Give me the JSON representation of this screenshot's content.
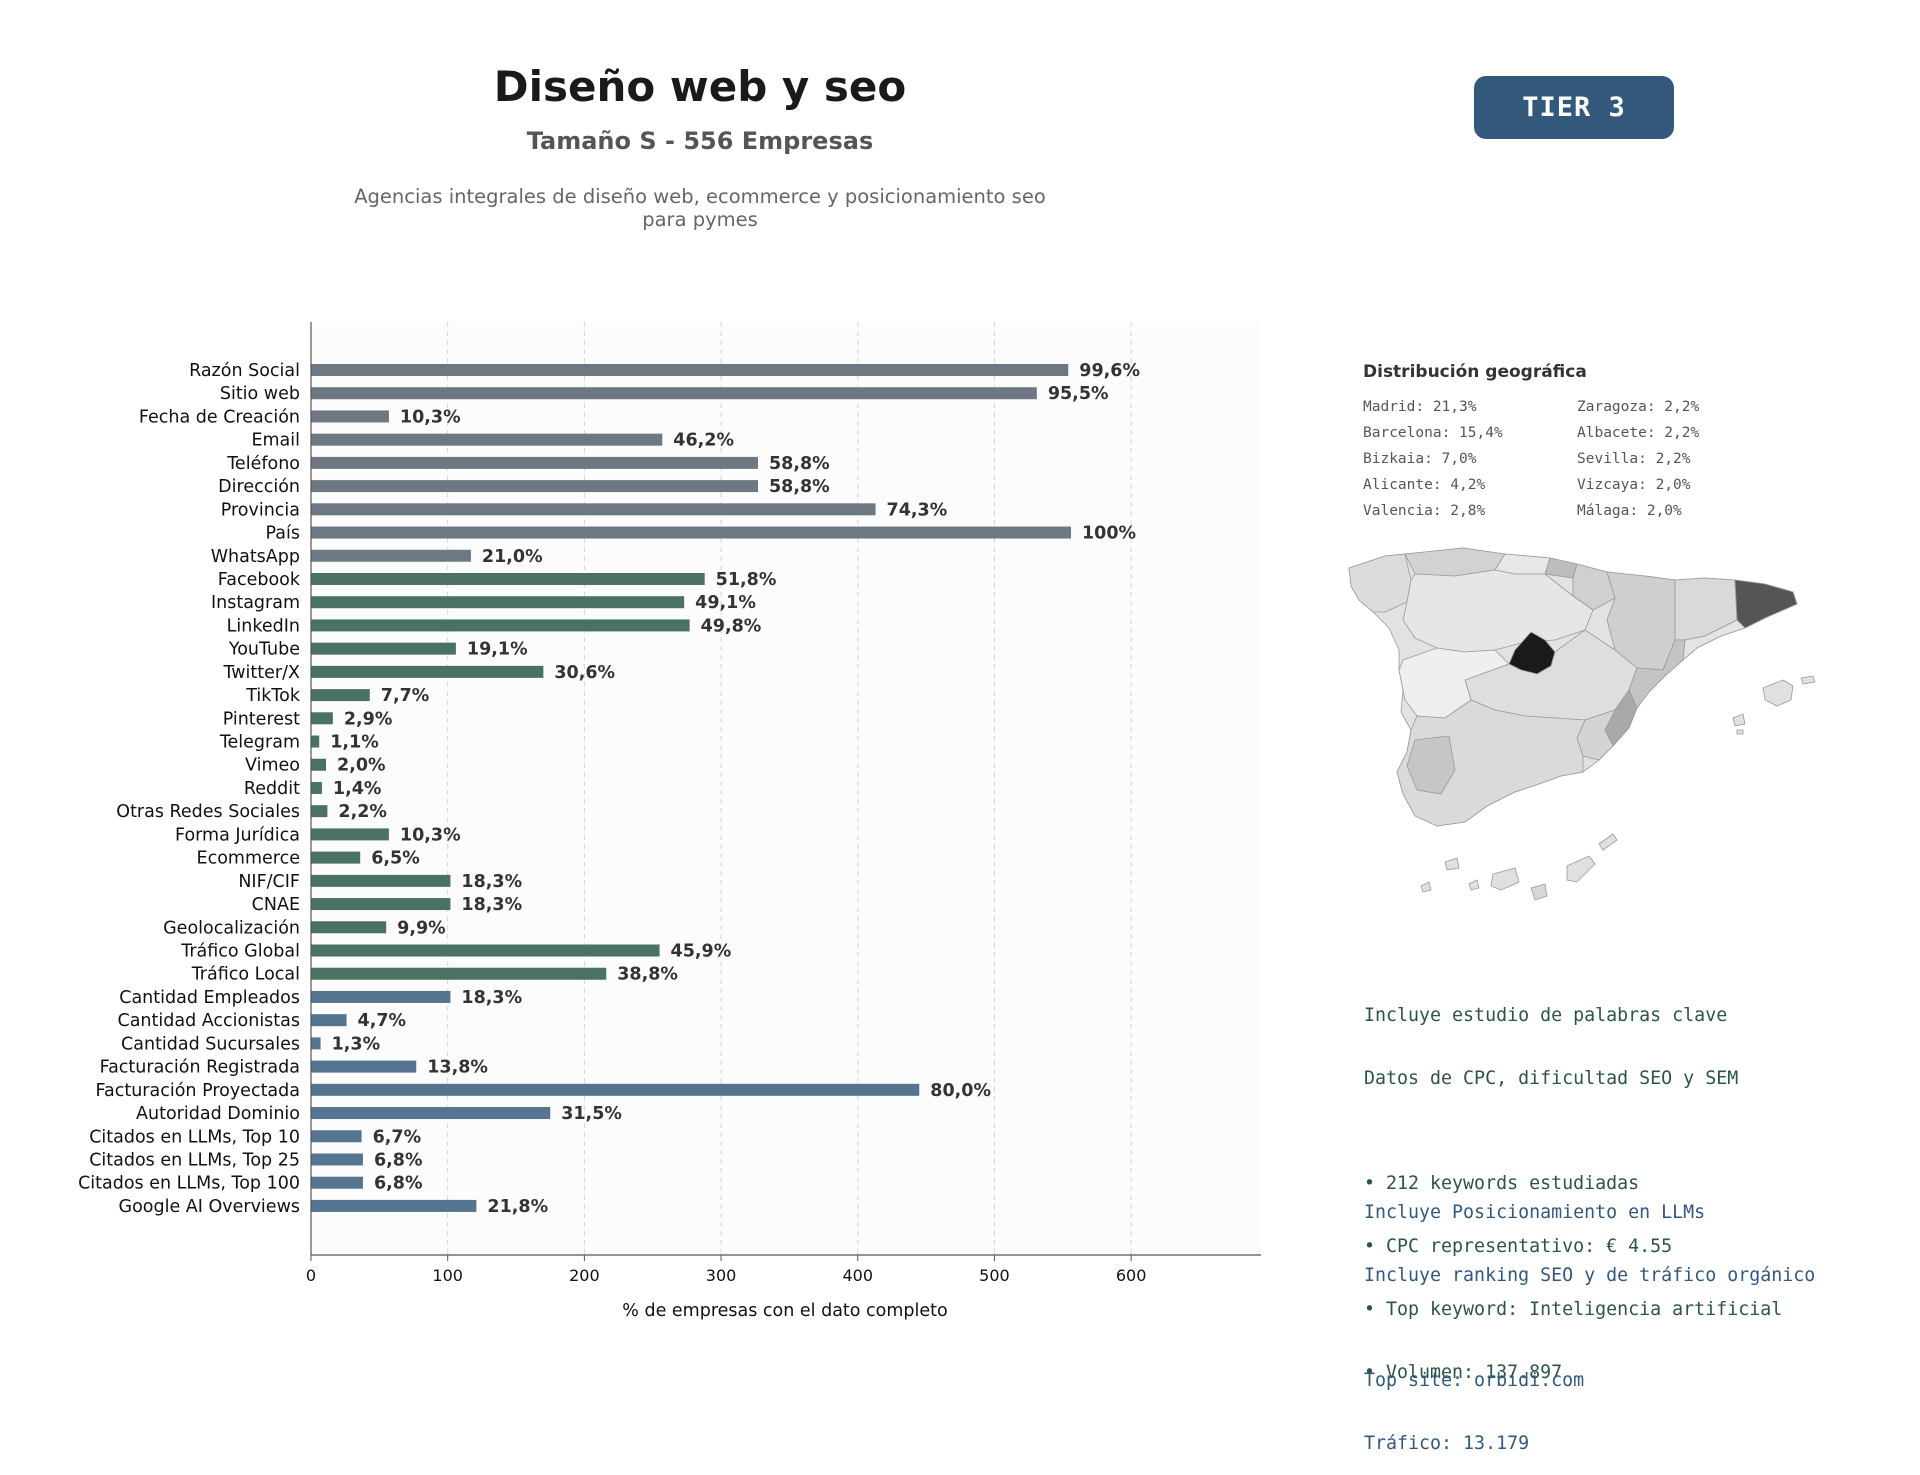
{
  "header": {
    "title": "Diseño web y seo",
    "subtitle": "Tamaño S - 556 Empresas",
    "description": "Agencias integrales de diseño web, ecommerce y posicionamiento seo para pymes",
    "tier": "TIER 3"
  },
  "chart_data": {
    "type": "bar",
    "orientation": "horizontal",
    "xlabel": "% de empresas con el dato completo",
    "xlim": [
      0,
      695
    ],
    "xticks": [
      0,
      100,
      200,
      300,
      400,
      500,
      600
    ],
    "grid": "vertical dashed",
    "colors": {
      "basic": "#6e7883",
      "social": "#4a7262",
      "business": "#55748f"
    },
    "bars": [
      {
        "label": "Razón Social",
        "value": 554,
        "pct": "99,6%",
        "group": "basic"
      },
      {
        "label": "Sitio web",
        "value": 531,
        "pct": "95,5%",
        "group": "basic"
      },
      {
        "label": "Fecha de Creación",
        "value": 57,
        "pct": "10,3%",
        "group": "basic"
      },
      {
        "label": "Email",
        "value": 257,
        "pct": "46,2%",
        "group": "basic"
      },
      {
        "label": "Teléfono",
        "value": 327,
        "pct": "58,8%",
        "group": "basic"
      },
      {
        "label": "Dirección",
        "value": 327,
        "pct": "58,8%",
        "group": "basic"
      },
      {
        "label": "Provincia",
        "value": 413,
        "pct": "74,3%",
        "group": "basic"
      },
      {
        "label": "País",
        "value": 556,
        "pct": "100%",
        "group": "basic"
      },
      {
        "label": "WhatsApp",
        "value": 117,
        "pct": "21,0%",
        "group": "basic"
      },
      {
        "label": "Facebook",
        "value": 288,
        "pct": "51,8%",
        "group": "social"
      },
      {
        "label": "Instagram",
        "value": 273,
        "pct": "49,1%",
        "group": "social"
      },
      {
        "label": "LinkedIn",
        "value": 277,
        "pct": "49,8%",
        "group": "social"
      },
      {
        "label": "YouTube",
        "value": 106,
        "pct": "19,1%",
        "group": "social"
      },
      {
        "label": "Twitter/X",
        "value": 170,
        "pct": "30,6%",
        "group": "social"
      },
      {
        "label": "TikTok",
        "value": 43,
        "pct": "7,7%",
        "group": "social"
      },
      {
        "label": "Pinterest",
        "value": 16,
        "pct": "2,9%",
        "group": "social"
      },
      {
        "label": "Telegram",
        "value": 6,
        "pct": "1,1%",
        "group": "social"
      },
      {
        "label": "Vimeo",
        "value": 11,
        "pct": "2,0%",
        "group": "social"
      },
      {
        "label": "Reddit",
        "value": 8,
        "pct": "1,4%",
        "group": "social"
      },
      {
        "label": "Otras Redes Sociales",
        "value": 12,
        "pct": "2,2%",
        "group": "social"
      },
      {
        "label": "Forma Jurídica",
        "value": 57,
        "pct": "10,3%",
        "group": "social"
      },
      {
        "label": "Ecommerce",
        "value": 36,
        "pct": "6,5%",
        "group": "social"
      },
      {
        "label": "NIF/CIF",
        "value": 102,
        "pct": "18,3%",
        "group": "social"
      },
      {
        "label": "CNAE",
        "value": 102,
        "pct": "18,3%",
        "group": "social"
      },
      {
        "label": "Geolocalización",
        "value": 55,
        "pct": "9,9%",
        "group": "social"
      },
      {
        "label": "Tráfico Global",
        "value": 255,
        "pct": "45,9%",
        "group": "social"
      },
      {
        "label": "Tráfico Local",
        "value": 216,
        "pct": "38,8%",
        "group": "social"
      },
      {
        "label": "Cantidad Empleados",
        "value": 102,
        "pct": "18,3%",
        "group": "business"
      },
      {
        "label": "Cantidad Accionistas",
        "value": 26,
        "pct": "4,7%",
        "group": "business"
      },
      {
        "label": "Cantidad Sucursales",
        "value": 7,
        "pct": "1,3%",
        "group": "business"
      },
      {
        "label": "Facturación Registrada",
        "value": 77,
        "pct": "13,8%",
        "group": "business"
      },
      {
        "label": "Facturación Proyectada",
        "value": 445,
        "pct": "80,0%",
        "group": "business"
      },
      {
        "label": "Autoridad Dominio",
        "value": 175,
        "pct": "31,5%",
        "group": "business"
      },
      {
        "label": "Citados en LLMs, Top 10",
        "value": 37,
        "pct": "6,7%",
        "group": "business"
      },
      {
        "label": "Citados en LLMs, Top 25",
        "value": 38,
        "pct": "6,8%",
        "group": "business"
      },
      {
        "label": "Citados en LLMs, Top 100",
        "value": 38,
        "pct": "6,8%",
        "group": "business"
      },
      {
        "label": "Google AI Overviews",
        "value": 121,
        "pct": "21,8%",
        "group": "business"
      }
    ]
  },
  "geo": {
    "title": "Distribución geográfica",
    "items": [
      "Madrid: 21,3%",
      "Zaragoza: 2,2%",
      "Barcelona: 15,4%",
      "Albacete: 2,2%",
      "Bizkaia: 7,0%",
      "Sevilla: 2,2%",
      "Alicante: 4,2%",
      "Vizcaya: 2,0%",
      "Valencia: 2,8%",
      "Málaga: 2,0%"
    ],
    "map_colors": {
      "madrid": "#1a1a1a",
      "barcelona": "#555555",
      "mid": "#c8c8c8",
      "light": "#e0e0e0",
      "lighter": "#efefef"
    }
  },
  "keywords": {
    "lines": [
      "Incluye estudio de palabras clave",
      "Datos de CPC, dificultad SEO y SEM",
      "",
      "• 212 keywords estudiadas",
      "• CPC representativo: € 4.55",
      "• Top keyword: Inteligencia artificial",
      "• Volumen: 137.897"
    ]
  },
  "llm": {
    "lines": [
      "Incluye Posicionamiento en LLMs",
      "Incluye ranking SEO y de tráfico orgánico",
      "",
      "Top site: orbidi.com",
      "Tráfico: 13.179"
    ]
  }
}
